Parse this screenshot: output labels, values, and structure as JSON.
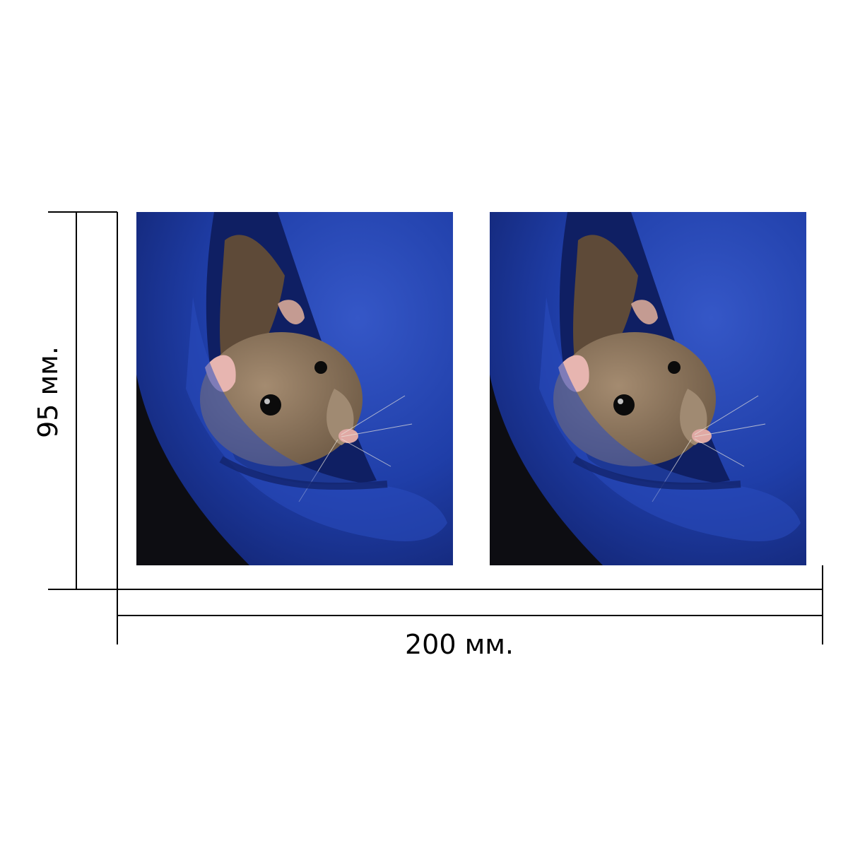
{
  "dimensions": {
    "height_label": "95 мм.",
    "width_label": "200 мм."
  },
  "photos": [
    {
      "subject": "rat-in-blue-pocket"
    },
    {
      "subject": "rat-in-blue-pocket"
    }
  ],
  "colors": {
    "fabric": "#1f3ea8",
    "fabric_dark": "#0f1f63",
    "fur": "#8b735a",
    "ear": "#e7b5b0",
    "line": "#000000"
  }
}
